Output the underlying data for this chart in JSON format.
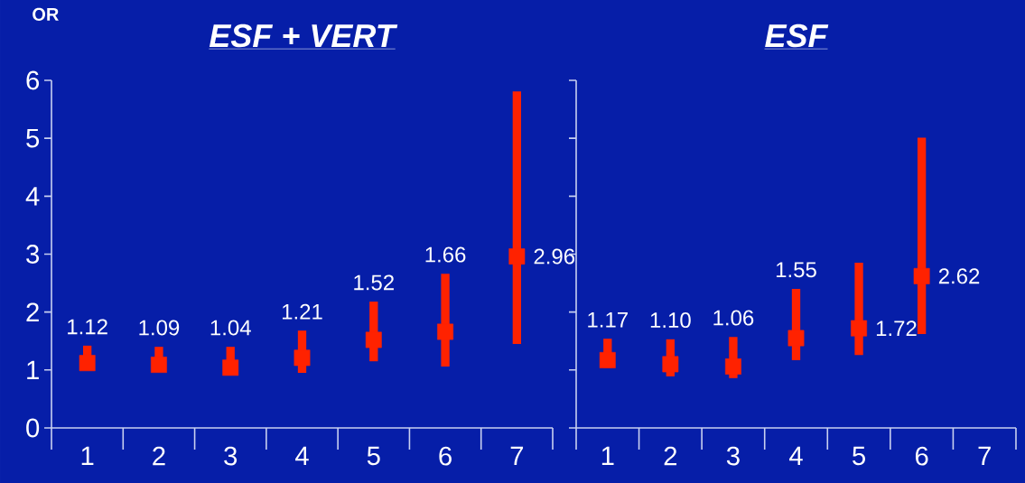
{
  "chart_data": [
    {
      "type": "scatter",
      "title": "ESF + VERT",
      "ylabel": "OR",
      "categories": [
        "1",
        "2",
        "3",
        "4",
        "5",
        "6",
        "7"
      ],
      "values": [
        1.12,
        1.09,
        1.04,
        1.21,
        1.52,
        1.66,
        2.96
      ],
      "errors": [
        [
          1.03,
          1.42
        ],
        [
          1.0,
          1.4
        ],
        [
          0.95,
          1.4
        ],
        [
          0.95,
          1.68
        ],
        [
          1.15,
          2.18
        ],
        [
          1.06,
          2.66
        ],
        [
          1.45,
          5.81
        ]
      ],
      "value_labels": [
        "1.12",
        "1.09",
        "1.04",
        "1.21",
        "1.52",
        "1.66",
        "2.96"
      ],
      "color": "#ff2200",
      "marker": "square",
      "ylim": [
        0,
        6
      ],
      "yticks": [
        0,
        1,
        2,
        3,
        4,
        5,
        6
      ]
    },
    {
      "type": "scatter",
      "title": "ESF",
      "categories": [
        "1",
        "2",
        "3",
        "4",
        "5",
        "6",
        "7"
      ],
      "values": [
        1.17,
        1.1,
        1.06,
        1.55,
        1.72,
        2.62,
        null
      ],
      "errors": [
        [
          1.04,
          1.54
        ],
        [
          0.89,
          1.53
        ],
        [
          0.86,
          1.57
        ],
        [
          1.17,
          2.4
        ],
        [
          1.26,
          2.85
        ],
        [
          1.62,
          5.01
        ],
        null
      ],
      "value_labels": [
        "1.17",
        "1.10",
        "1.06",
        "1.55",
        "1.72",
        "2.62",
        null
      ],
      "color": "#ff2200",
      "marker": "square",
      "ylim": [
        0,
        6
      ],
      "yticks": [
        0,
        1,
        2,
        3,
        4,
        5,
        6
      ],
      "tick_labels": "x"
    }
  ]
}
